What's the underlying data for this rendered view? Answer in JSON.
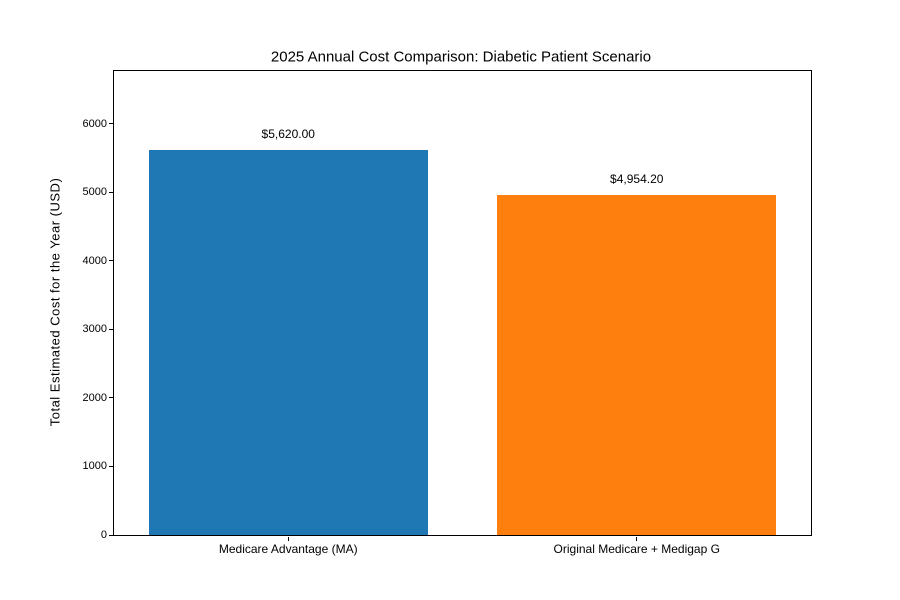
{
  "chart_data": {
    "type": "bar",
    "title": "2025 Annual Cost Comparison: Diabetic Patient Scenario",
    "xlabel": "",
    "ylabel": "Total Estimated Cost for the Year (USD)",
    "categories": [
      "Medicare Advantage (MA)",
      "Original Medicare + Medigap G"
    ],
    "values": [
      5620.0,
      4954.2
    ],
    "bar_labels": [
      "$5,620.00",
      "$4,954.20"
    ],
    "bar_colors": [
      "#1f77b4",
      "#ff7f0e"
    ],
    "yticks": [
      0,
      1000,
      2000,
      3000,
      4000,
      5000,
      6000
    ],
    "ytick_labels": [
      "0",
      "1000",
      "2000",
      "3000",
      "4000",
      "5000",
      "6000"
    ],
    "ylim": [
      0,
      6770
    ],
    "grid": false,
    "legend": null
  },
  "colors": {
    "background": "#ffffff",
    "spine": "#000000",
    "text": "#000000",
    "bar_1": "#1f77b4",
    "bar_2": "#ff7f0e"
  }
}
